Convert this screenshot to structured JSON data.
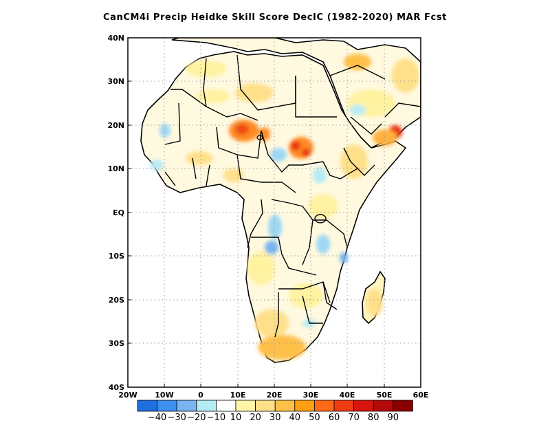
{
  "title": "CanCM4i Precip Heidke Skill Score DecIC (1982-2020) MAR Fcst",
  "axes": {
    "y_ticks": [
      "40N",
      "30N",
      "20N",
      "10N",
      "EQ",
      "10S",
      "20S",
      "30S",
      "40S"
    ],
    "x_ticks": [
      "20W",
      "10W",
      "0",
      "10E",
      "20E",
      "30E",
      "40E",
      "50E",
      "60E"
    ]
  },
  "colorbar": {
    "labels": [
      "-40",
      "-30",
      "-20",
      "-10",
      "10",
      "20",
      "30",
      "40",
      "50",
      "60",
      "70",
      "80",
      "90"
    ],
    "colors": [
      "#1f6fe0",
      "#3d8ff0",
      "#78b4f0",
      "#b4ecf4",
      "#ffffff",
      "#fff5a8",
      "#ffe08a",
      "#ffc04a",
      "#ffa010",
      "#ff6a1a",
      "#f03a14",
      "#d8140e",
      "#b4080a",
      "#8a0000"
    ]
  },
  "map": {
    "lon_range": [
      -20,
      60
    ],
    "lat_range": [
      -40,
      40
    ],
    "land_color": "#fffbe8",
    "border_color": "#000000"
  }
}
